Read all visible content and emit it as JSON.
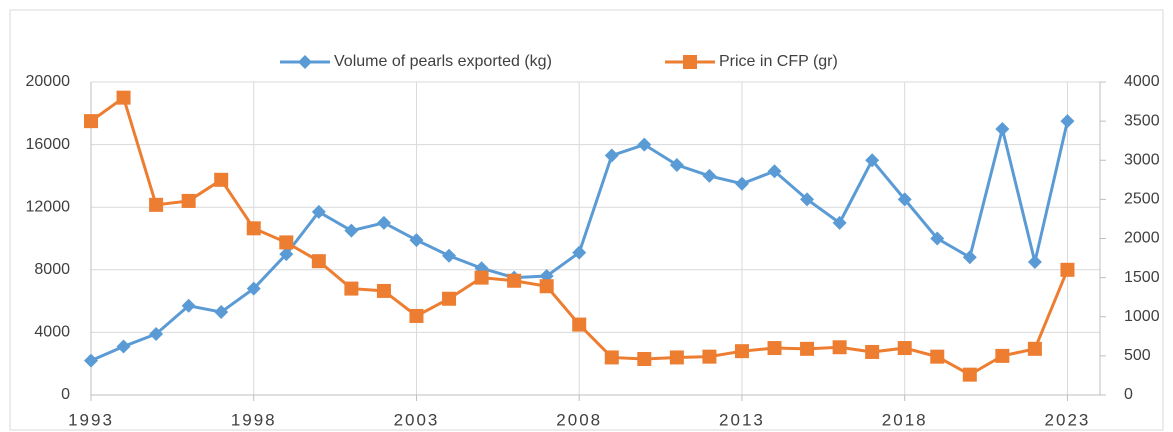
{
  "chart_data": {
    "type": "line",
    "x": [
      1993,
      1994,
      1995,
      1996,
      1997,
      1998,
      1999,
      2000,
      2001,
      2002,
      2003,
      2004,
      2005,
      2006,
      2007,
      2008,
      2009,
      2010,
      2011,
      2012,
      2013,
      2014,
      2015,
      2016,
      2017,
      2018,
      2019,
      2020,
      2021,
      2022,
      2023
    ],
    "series": [
      {
        "name": "Volume of pearls exported (kg)",
        "color": "#5b9bd5",
        "marker": "diamond",
        "values": [
          2200,
          3100,
          3900,
          5700,
          5300,
          6800,
          9000,
          11700,
          10500,
          11000,
          9900,
          8900,
          8100,
          7500,
          7600,
          9100,
          15300,
          16000,
          14700,
          14000,
          13500,
          14300,
          12500,
          11000,
          15000,
          12500,
          10000,
          8800,
          17000,
          8500,
          17500
        ]
      },
      {
        "name": "Price in CFP (gr)",
        "color": "#ed7d31",
        "marker": "square",
        "axis": "y2",
        "values": [
          3500,
          3800,
          2430,
          2480,
          2750,
          2130,
          1950,
          1710,
          1360,
          1330,
          1010,
          1230,
          1500,
          1460,
          1390,
          900,
          480,
          460,
          480,
          490,
          560,
          600,
          590,
          610,
          550,
          600,
          490,
          260,
          500,
          590,
          1600
        ]
      }
    ],
    "xlim": [
      1993,
      2024
    ],
    "xticks": [
      1993,
      1998,
      2003,
      2008,
      2013,
      2018,
      2023
    ],
    "ylim": [
      0,
      20000
    ],
    "yticks": [
      0,
      4000,
      8000,
      12000,
      16000,
      20000
    ],
    "y2lim": [
      0,
      4000
    ],
    "y2ticks": [
      0,
      500,
      1000,
      1500,
      2000,
      2500,
      3000,
      3500,
      4000
    ],
    "grid": true,
    "legend": "top"
  }
}
